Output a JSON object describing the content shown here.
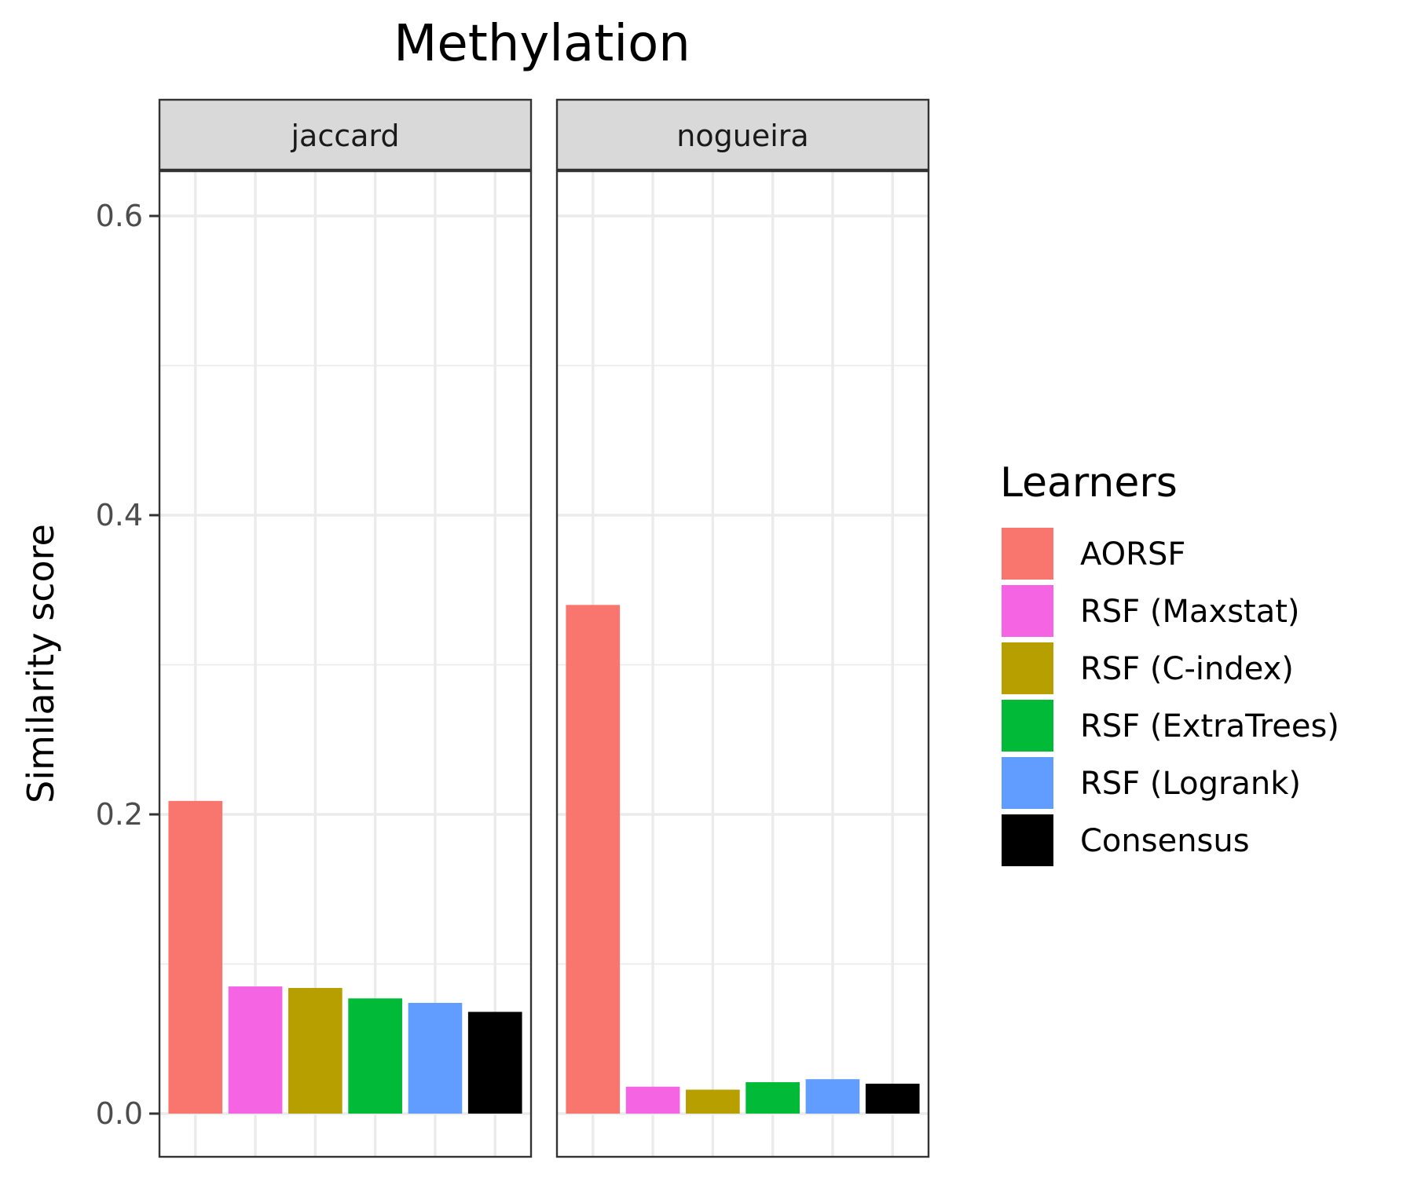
{
  "chart_data": {
    "type": "bar",
    "title": "Methylation",
    "xlabel": "",
    "ylabel": "Similarity score",
    "ylim": [
      -0.0,
      0.62
    ],
    "yticks": [
      0.0,
      0.2,
      0.4,
      0.6
    ],
    "ytick_labels": [
      "0.0",
      "0.2",
      "0.4",
      "0.6"
    ],
    "grid": true,
    "legend": {
      "title": "Learners",
      "position": "right",
      "entries": [
        {
          "name": "AORSF",
          "color": "#F8766D"
        },
        {
          "name": "RSF (Maxstat)",
          "color": "#F564E3"
        },
        {
          "name": "RSF (C-index)",
          "color": "#B79F00"
        },
        {
          "name": "RSF (ExtraTrees)",
          "color": "#00BA38"
        },
        {
          "name": "RSF (Logrank)",
          "color": "#619CFF"
        },
        {
          "name": "Consensus",
          "color": "#000000"
        }
      ]
    },
    "categories": [
      "AORSF",
      "RSF (Maxstat)",
      "RSF (C-index)",
      "RSF (ExtraTrees)",
      "RSF (Logrank)",
      "Consensus"
    ],
    "panels": [
      {
        "name": "jaccard",
        "values": [
          0.209,
          0.085,
          0.084,
          0.077,
          0.074,
          0.068
        ]
      },
      {
        "name": "nogueira",
        "values": [
          0.34,
          0.018,
          0.016,
          0.021,
          0.023,
          0.02
        ]
      }
    ]
  }
}
